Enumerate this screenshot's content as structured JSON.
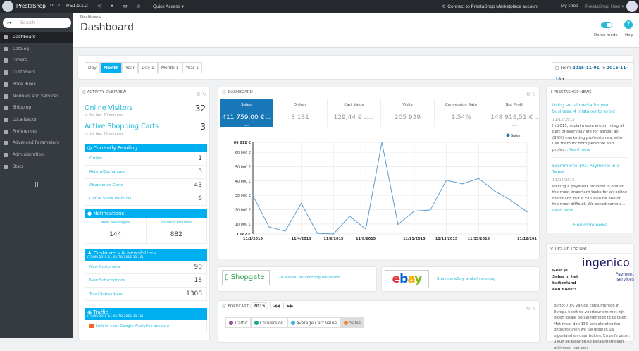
{
  "topbar": {
    "brand": "PrestaShop",
    "version": "1.6.1.2",
    "shop_version": "PS1.6.1.2",
    "quick_access": "Quick Access",
    "marketplace": "Connect to PrestaShop Marketplace account",
    "my_shop": "My shop",
    "user": "PrestaShop User"
  },
  "sidebar": {
    "search_placeholder": "Search",
    "items": [
      {
        "label": "Dashboard",
        "icon": "dashboard-icon"
      },
      {
        "label": "Catalog",
        "icon": "book-icon"
      },
      {
        "label": "Orders",
        "icon": "credit-card-icon"
      },
      {
        "label": "Customers",
        "icon": "users-icon"
      },
      {
        "label": "Price Rules",
        "icon": "tags-icon"
      },
      {
        "label": "Modules and Services",
        "icon": "puzzle-icon"
      },
      {
        "label": "Shipping",
        "icon": "truck-icon"
      },
      {
        "label": "Localization",
        "icon": "globe-icon"
      },
      {
        "label": "Preferences",
        "icon": "wrench-icon"
      },
      {
        "label": "Advanced Parameters",
        "icon": "cogs-icon"
      },
      {
        "label": "Administration",
        "icon": "gear-icon"
      },
      {
        "label": "Stats",
        "icon": "bar-chart-icon"
      }
    ]
  },
  "header": {
    "breadcrumb": "Dashboard",
    "title": "Dashboard",
    "demo_mode": "Demo mode",
    "help": "Help",
    "accent": "#25b9d7"
  },
  "toolbar": {
    "periods": [
      "Day",
      "Month",
      "Year",
      "Day-1",
      "Month-1",
      "Year-1"
    ],
    "active": "Month",
    "from_label": "From",
    "from": "2015-11-01",
    "to_label": "To",
    "to": "2015-11-18"
  },
  "activity": {
    "title": "Activity overview",
    "online_visitors": "Online Visitors",
    "online_value": "32",
    "online_sub": "in the last 30 minutes",
    "carts": "Active Shopping Carts",
    "carts_value": "3",
    "carts_sub": "in the last 30 minutes",
    "pending_title": "Currently Pending",
    "pending": [
      {
        "label": "Orders",
        "value": "1"
      },
      {
        "label": "Return/Exchanges",
        "value": "3"
      },
      {
        "label": "Abandoned Carts",
        "value": "43"
      },
      {
        "label": "Out of Stock Products",
        "value": "6"
      }
    ],
    "notifications_title": "Notifications",
    "messages_label": "New Messages",
    "messages": "144",
    "reviews_label": "Product Reviews",
    "reviews": "882",
    "customers_title": "Customers & Newsletters",
    "customers_range": "(FROM 2015-11-01 TO 2015-11-18)",
    "customers": [
      {
        "label": "New Customers",
        "value": "90"
      },
      {
        "label": "New Subscriptions",
        "value": "18"
      },
      {
        "label": "Total Subscribers",
        "value": "1308"
      }
    ],
    "traffic_title": "Traffic",
    "traffic_range": "(FROM 2015-11-01 TO 2015-11-18)",
    "ga_link": "Link to your Google Analytics account"
  },
  "dashboard": {
    "title": "Dashboard",
    "tax": "tax excl.",
    "kpis": [
      {
        "label": "Sales",
        "value": "411 759,00 €",
        "tax": true
      },
      {
        "label": "Orders",
        "value": "3 181"
      },
      {
        "label": "Cart Value",
        "value": "129,44 €",
        "tax": true
      },
      {
        "label": "Visits",
        "value": "205 939"
      },
      {
        "label": "Conversion Rate",
        "value": "1.54%"
      },
      {
        "label": "Net Profit",
        "value": "148 918,51 €",
        "tax": true
      }
    ]
  },
  "chart_data": {
    "type": "line",
    "series": [
      {
        "name": "Sales",
        "color": "#1777b7",
        "values": [
          30000,
          8000,
          5000,
          24500,
          3500,
          3082,
          15500,
          6500,
          66912,
          9700,
          19000,
          19800,
          40500,
          38000,
          41800,
          33000,
          26500,
          18500
        ]
      }
    ],
    "x": [
      "11/1/2015",
      "11/2/2015",
      "11/3/2015",
      "11/4/2015",
      "11/5/2015",
      "11/6/2015",
      "11/7/2015",
      "11/8/2015",
      "11/9/2015",
      "11/10/2015",
      "11/11/2015",
      "11/12/2015",
      "11/13/2015",
      "11/14/2015",
      "11/15/2015",
      "11/16/2015",
      "11/17/2015",
      "11/18/2015"
    ],
    "x_tick_labels": [
      "11/1/2015",
      "11/4/2015",
      "11/6/2015",
      "11/8/2015",
      "11/11/2015",
      "11/13/2015",
      "11/15/2015",
      "11/18/201"
    ],
    "y_tick_labels": [
      "66 912 €",
      "60 000 €",
      "50 000 €",
      "40 000 €",
      "30 000 €",
      "20 000 €",
      "10 000 €",
      "3 082 €"
    ],
    "ylim": [
      3082,
      66912
    ],
    "grid": true,
    "legend": "top-right"
  },
  "partners": {
    "shopgate": "Shopgate",
    "shopgate_text": "Ga mobiel en verhoog uw omzet",
    "ebay": "ebay",
    "ebay_text": "Start uw eBay winkel vandaag"
  },
  "forecast": {
    "title": "Forecast",
    "year": "2015",
    "tabs": [
      {
        "label": "Traffic",
        "color": "#9c4f9c"
      },
      {
        "label": "Conversion",
        "color": "#15a591"
      },
      {
        "label": "Average Cart Value",
        "color": "#3ab4e0"
      },
      {
        "label": "Sales",
        "color": "#f28a2e"
      }
    ]
  },
  "news": {
    "title": "PrestaShop News",
    "items": [
      {
        "title": "Using social media for your business: 4 mistakes to avoid",
        "date": "11/12/2015",
        "text": "In 2015, social media are an integral part of everyday life for almost all (96%) marketing professionals, who use them for both personal and profes...",
        "more": "Read more"
      },
      {
        "title": "Ecommerce 101: Payments in a Tweet",
        "date": "11/05/2015",
        "text": "Picking a payment provider is one of the most important tasks for an online merchant, but it can also be one of the most difficult. We asked some o...",
        "more": "Read more"
      }
    ],
    "find_more": "Find more news"
  },
  "tips": {
    "title": "Tips of the day",
    "logo": "ingenico",
    "logo_sub": "Payment services",
    "headline": "Geef je Sales in het buitenland een Boost!",
    "text": "30 tot 70% van de consumenten in Europa heeft de voorkeur om met zijn eigen lokale betaalmethode te betalen. Met meer dan 150 betaalmethoden, ondersteunen wij uw groei in uw eigenland en daar buiten. En zelfs beter: u kun de belangrijke betaalmethoden activeren met een"
  }
}
